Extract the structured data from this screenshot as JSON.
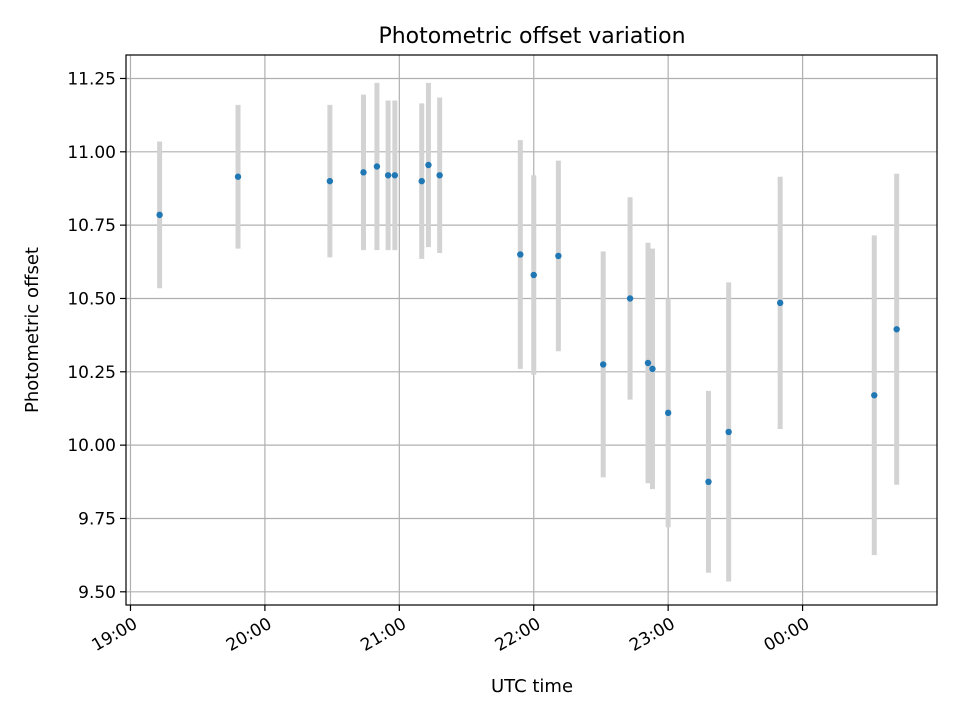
{
  "chart_data": {
    "type": "scatter",
    "title": "Photometric offset variation",
    "xlabel": "UTC time",
    "ylabel": "Photometric offset",
    "x_axis": {
      "type": "time",
      "range": [
        "18:58",
        "01:00"
      ],
      "ticks": [
        "19:00",
        "20:00",
        "21:00",
        "22:00",
        "23:00",
        "00:00"
      ]
    },
    "y_axis": {
      "range": [
        9.455,
        11.33
      ],
      "ticks": [
        "9.50",
        "9.75",
        "10.00",
        "10.25",
        "10.50",
        "10.75",
        "11.00",
        "11.25"
      ]
    },
    "grid": true,
    "point_color": "#1f77b4",
    "errorbar_color": "#d3d3d3",
    "series": [
      {
        "points": [
          {
            "time": "19:13",
            "y": 10.785,
            "err": 0.25
          },
          {
            "time": "19:48",
            "y": 10.915,
            "err": 0.245
          },
          {
            "time": "20:29",
            "y": 10.9,
            "err": 0.26
          },
          {
            "time": "20:44",
            "y": 10.93,
            "err": 0.265
          },
          {
            "time": "20:50",
            "y": 10.95,
            "err": 0.285
          },
          {
            "time": "20:55",
            "y": 10.92,
            "err": 0.255
          },
          {
            "time": "20:58",
            "y": 10.92,
            "err": 0.255
          },
          {
            "time": "21:10",
            "y": 10.9,
            "err": 0.265
          },
          {
            "time": "21:13",
            "y": 10.955,
            "err": 0.28
          },
          {
            "time": "21:18",
            "y": 10.92,
            "err": 0.265
          },
          {
            "time": "21:54",
            "y": 10.65,
            "err": 0.39
          },
          {
            "time": "22:00",
            "y": 10.58,
            "err": 0.34
          },
          {
            "time": "22:11",
            "y": 10.645,
            "err": 0.325
          },
          {
            "time": "22:31",
            "y": 10.275,
            "err": 0.385
          },
          {
            "time": "22:43",
            "y": 10.5,
            "err": 0.345
          },
          {
            "time": "22:51",
            "y": 10.28,
            "err": 0.41
          },
          {
            "time": "22:53",
            "y": 10.26,
            "err": 0.41
          },
          {
            "time": "23:00",
            "y": 10.11,
            "err": 0.39
          },
          {
            "time": "23:18",
            "y": 9.875,
            "err": 0.31
          },
          {
            "time": "23:27",
            "y": 10.045,
            "err": 0.51
          },
          {
            "time": "23:50",
            "y": 10.485,
            "err": 0.43
          },
          {
            "time": "00:32",
            "y": 10.17,
            "err": 0.545
          },
          {
            "time": "00:42",
            "y": 10.395,
            "err": 0.53
          }
        ]
      }
    ]
  }
}
